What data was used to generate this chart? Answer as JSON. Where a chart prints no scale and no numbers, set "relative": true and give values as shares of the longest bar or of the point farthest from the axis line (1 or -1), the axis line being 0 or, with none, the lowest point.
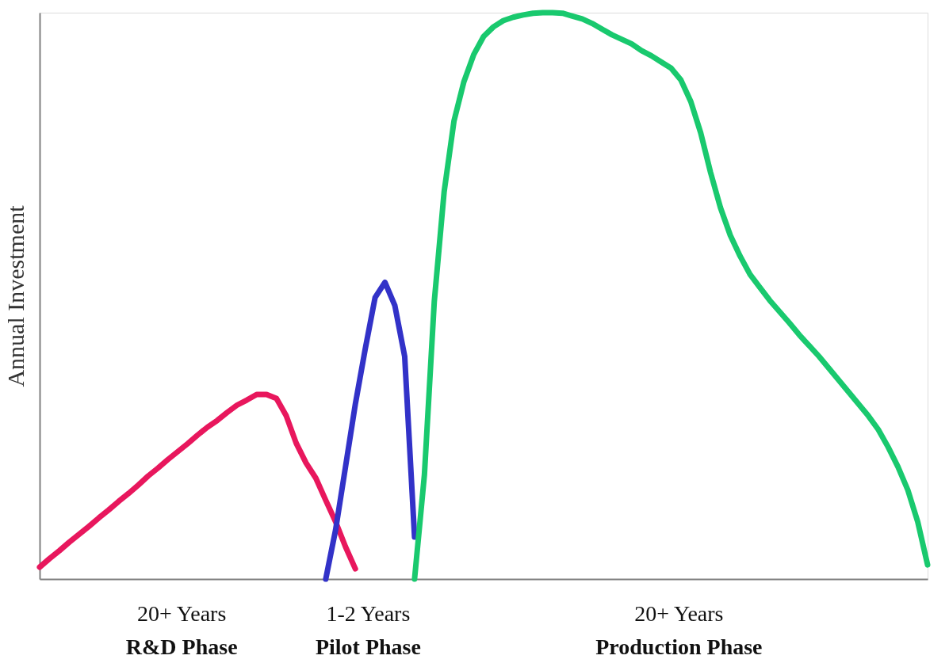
{
  "chart_data": {
    "type": "line",
    "relative": true,
    "ylabel": "Annual Investment",
    "categories": [
      null,
      null,
      null,
      null,
      null,
      null,
      null,
      null,
      null,
      null,
      null,
      null,
      null,
      null,
      null,
      null,
      null,
      null,
      null,
      null,
      null,
      null,
      null,
      null,
      null,
      null,
      null,
      null,
      null,
      null,
      null,
      null,
      null,
      null,
      null,
      null,
      null,
      null,
      null,
      null,
      null,
      null,
      null,
      null,
      null,
      null,
      null,
      null,
      null,
      null,
      null,
      null,
      null,
      null,
      null,
      null,
      null,
      null,
      null,
      null,
      null,
      null,
      null,
      null,
      null,
      null,
      null,
      null,
      null,
      null,
      null,
      null,
      null,
      null,
      null,
      null,
      null,
      null,
      null,
      null,
      null,
      null,
      null,
      null,
      null,
      null,
      null,
      null,
      null,
      null,
      null
    ],
    "series": [
      {
        "color": "#e8175d",
        "values": [
          0.021,
          0.036,
          0.05,
          0.065,
          0.079,
          0.093,
          0.108,
          0.122,
          0.137,
          0.151,
          0.166,
          0.182,
          0.196,
          0.211,
          0.225,
          0.239,
          0.254,
          0.268,
          0.28,
          0.294,
          0.307,
          0.316,
          0.326,
          0.326,
          0.319,
          0.288,
          0.24,
          0.205,
          0.178,
          0.139,
          0.101,
          0.057,
          0.018,
          null,
          null,
          null,
          null,
          null,
          null,
          null,
          null,
          null,
          null,
          null,
          null,
          null,
          null,
          null,
          null,
          null,
          null,
          null,
          null,
          null,
          null,
          null,
          null,
          null,
          null,
          null,
          null,
          null,
          null,
          null,
          null,
          null,
          null,
          null,
          null,
          null,
          null,
          null,
          null,
          null,
          null,
          null,
          null,
          null,
          null,
          null,
          null,
          null,
          null,
          null,
          null,
          null,
          null,
          null,
          null,
          null,
          null
        ]
      },
      {
        "color": "#3232c8",
        "values": [
          null,
          null,
          null,
          null,
          null,
          null,
          null,
          null,
          null,
          null,
          null,
          null,
          null,
          null,
          null,
          null,
          null,
          null,
          null,
          null,
          null,
          null,
          null,
          null,
          null,
          null,
          null,
          null,
          null,
          0.0,
          0.087,
          0.198,
          0.309,
          0.406,
          0.497,
          0.524,
          0.483,
          0.393,
          0.074,
          null,
          null,
          null,
          null,
          null,
          null,
          null,
          null,
          null,
          null,
          null,
          null,
          null,
          null,
          null,
          null,
          null,
          null,
          null,
          null,
          null,
          null,
          null,
          null,
          null,
          null,
          null,
          null,
          null,
          null,
          null,
          null,
          null,
          null,
          null,
          null,
          null,
          null,
          null,
          null,
          null,
          null,
          null,
          null,
          null,
          null,
          null,
          null,
          null,
          null,
          null,
          null
        ]
      },
      {
        "color": "#19c96e",
        "values": [
          null,
          null,
          null,
          null,
          null,
          null,
          null,
          null,
          null,
          null,
          null,
          null,
          null,
          null,
          null,
          null,
          null,
          null,
          null,
          null,
          null,
          null,
          null,
          null,
          null,
          null,
          null,
          null,
          null,
          null,
          null,
          null,
          null,
          null,
          null,
          null,
          null,
          null,
          0.0,
          0.184,
          0.49,
          0.684,
          0.809,
          0.878,
          0.926,
          0.958,
          0.975,
          0.986,
          0.992,
          0.996,
          0.999,
          1.0,
          1.0,
          0.999,
          0.994,
          0.989,
          0.981,
          0.971,
          0.961,
          0.953,
          0.945,
          0.933,
          0.924,
          0.913,
          0.902,
          0.881,
          0.843,
          0.788,
          0.718,
          0.656,
          0.607,
          0.57,
          0.538,
          0.515,
          0.492,
          0.472,
          0.452,
          0.431,
          0.412,
          0.393,
          0.372,
          0.351,
          0.33,
          0.309,
          0.288,
          0.264,
          0.233,
          0.198,
          0.157,
          0.101,
          0.025
        ]
      }
    ],
    "annotations": [
      "20+ Years",
      "R&D Phase",
      "1-2 Years",
      "Pilot Phase",
      "20+ Years",
      "Production  Phase"
    ],
    "grid": false,
    "tick_labels": false,
    "marker": "none",
    "line_style": "solid"
  }
}
